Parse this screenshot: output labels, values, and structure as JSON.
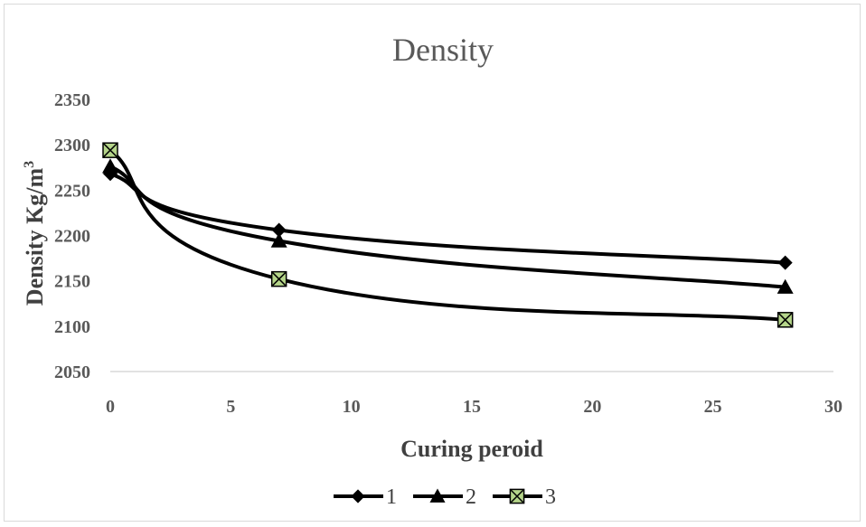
{
  "chart_data": {
    "type": "line",
    "title": "Density",
    "xlabel": "Curing peroid",
    "ylabel": "Density Kg/m",
    "ylabel_superscript": "3",
    "xlim": [
      0,
      30
    ],
    "ylim": [
      2050,
      2350
    ],
    "xticks": [
      0,
      5,
      10,
      15,
      20,
      25,
      30
    ],
    "yticks": [
      2050,
      2100,
      2150,
      2200,
      2250,
      2300,
      2350
    ],
    "grid": false,
    "smooth": true,
    "legend_position": "bottom",
    "series": [
      {
        "name": "1",
        "marker": "diamond",
        "color": "#000000",
        "x": [
          0,
          7,
          28
        ],
        "y": [
          2268,
          2206,
          2170
        ]
      },
      {
        "name": "2",
        "marker": "triangle",
        "color": "#000000",
        "x": [
          0,
          7,
          28
        ],
        "y": [
          2276,
          2194,
          2143
        ]
      },
      {
        "name": "3",
        "marker": "x-square",
        "color": "#000000",
        "marker_fill": "#b5d58a",
        "x": [
          0,
          7,
          28
        ],
        "y": [
          2294,
          2152,
          2107
        ]
      }
    ]
  }
}
